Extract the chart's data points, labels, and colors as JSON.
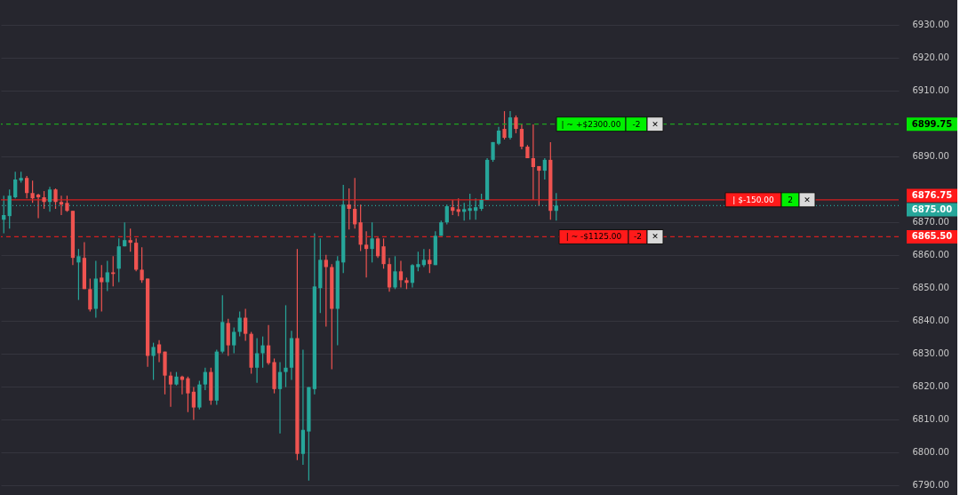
{
  "chart_data": {
    "type": "candlestick",
    "categories": [
      null,
      null,
      null,
      null,
      null,
      null,
      null,
      null,
      null,
      null,
      null,
      null,
      null,
      null,
      null,
      null,
      null,
      null,
      null,
      null,
      null,
      null,
      null,
      null,
      null,
      null,
      null,
      null,
      null,
      null,
      null,
      null,
      null,
      null,
      null,
      null,
      null,
      null,
      null,
      null,
      null,
      null,
      null,
      null,
      null,
      null,
      null,
      null,
      null,
      null,
      null,
      null,
      null,
      null,
      null,
      null,
      null,
      null,
      null,
      null,
      null,
      null,
      null,
      null,
      null,
      null,
      null,
      null,
      null,
      null,
      null,
      null,
      null,
      null,
      null,
      null,
      null,
      null,
      null,
      null,
      null,
      null,
      null,
      null,
      null,
      null,
      null,
      null,
      null,
      null,
      null,
      null,
      null,
      null,
      null,
      null,
      null,
      null,
      null,
      null,
      null,
      null,
      null,
      null,
      null,
      null,
      null,
      null,
      null,
      null,
      null,
      null,
      null,
      null,
      null,
      null,
      null,
      null,
      null,
      null,
      null,
      null,
      null,
      null,
      null,
      null,
      null,
      null,
      null,
      null,
      null,
      null,
      null,
      null,
      null,
      null,
      null,
      null,
      null,
      null,
      null,
      null,
      null,
      null,
      null,
      null,
      null,
      null,
      null,
      null,
      null,
      null,
      null,
      null,
      null,
      null
    ],
    "ohlc": [
      [
        6870.7,
        6878.0,
        6866.6,
        6872.1
      ],
      [
        6871.8,
        6879.9,
        6868.0,
        6878.0
      ],
      [
        6877.5,
        6885.3,
        6877.2,
        6882.9
      ],
      [
        6882.6,
        6885.3,
        6882.0,
        6883.4
      ],
      [
        6883.4,
        6884.0,
        6877.2,
        6878.8
      ],
      [
        6878.8,
        6882.6,
        6875.8,
        6877.2
      ],
      [
        6878.3,
        6878.6,
        6871.2,
        6877.5
      ],
      [
        6877.5,
        6879.4,
        6874.0,
        6876.1
      ],
      [
        6876.1,
        6880.7,
        6873.1,
        6879.9
      ],
      [
        6879.9,
        6880.2,
        6874.0,
        6876.1
      ],
      [
        6876.1,
        6878.0,
        6872.1,
        6875.3
      ],
      [
        6875.8,
        6878.0,
        6873.1,
        6873.4
      ],
      [
        6873.4,
        6873.4,
        6856.9,
        6859.1
      ],
      [
        6857.7,
        6861.8,
        6846.3,
        6859.6
      ],
      [
        6859.1,
        6863.9,
        6849.6,
        6849.6
      ],
      [
        6849.6,
        6852.8,
        6842.8,
        6843.4
      ],
      [
        6843.6,
        6858.2,
        6840.9,
        6852.8
      ],
      [
        6853.1,
        6856.9,
        6842.8,
        6851.7
      ],
      [
        6851.7,
        6858.2,
        6849.0,
        6854.7
      ],
      [
        6854.7,
        6859.6,
        6850.4,
        6854.2
      ],
      [
        6855.8,
        6865.0,
        6851.7,
        6862.6
      ],
      [
        6862.6,
        6869.9,
        6862.6,
        6864.5
      ],
      [
        6864.5,
        6868.0,
        6861.0,
        6863.7
      ],
      [
        6863.7,
        6865.0,
        6855.0,
        6855.5
      ],
      [
        6855.5,
        6862.3,
        6851.5,
        6852.3
      ],
      [
        6852.8,
        6852.8,
        6826.0,
        6829.3
      ],
      [
        6829.3,
        6833.3,
        6822.0,
        6832.0
      ],
      [
        6832.8,
        6834.1,
        6827.4,
        6830.1
      ],
      [
        6830.6,
        6830.6,
        6817.6,
        6823.3
      ],
      [
        6823.3,
        6824.4,
        6813.8,
        6820.6
      ],
      [
        6820.6,
        6824.4,
        6820.3,
        6823.0
      ],
      [
        6823.0,
        6823.3,
        6817.6,
        6822.0
      ],
      [
        6822.5,
        6823.0,
        6812.2,
        6817.9
      ],
      [
        6818.4,
        6819.8,
        6809.8,
        6813.6
      ],
      [
        6813.6,
        6821.7,
        6813.0,
        6820.6
      ],
      [
        6820.6,
        6825.7,
        6818.9,
        6824.4
      ],
      [
        6824.4,
        6825.7,
        6814.4,
        6815.7
      ],
      [
        6815.7,
        6831.2,
        6814.4,
        6830.6
      ],
      [
        6830.6,
        6847.7,
        6830.1,
        6839.6
      ],
      [
        6839.3,
        6840.6,
        6829.3,
        6832.5
      ],
      [
        6832.5,
        6837.9,
        6830.1,
        6836.6
      ],
      [
        6836.6,
        6842.8,
        6835.2,
        6840.9
      ],
      [
        6840.9,
        6843.6,
        6833.9,
        6836.0
      ],
      [
        6836.0,
        6836.6,
        6823.9,
        6825.7
      ],
      [
        6825.7,
        6834.7,
        6821.1,
        6830.1
      ],
      [
        6830.1,
        6835.2,
        6825.7,
        6832.5
      ],
      [
        6832.5,
        6838.7,
        6826.6,
        6827.1
      ],
      [
        6827.4,
        6828.5,
        6817.9,
        6819.2
      ],
      [
        6819.2,
        6827.4,
        6805.7,
        6824.4
      ],
      [
        6824.4,
        6844.7,
        6819.8,
        6825.7
      ],
      [
        6825.7,
        6836.9,
        6822.0,
        6834.7
      ],
      [
        6834.7,
        6861.8,
        6797.6,
        6799.5
      ],
      [
        6799.5,
        6831.2,
        6796.2,
        6806.8
      ],
      [
        6806.3,
        6819.8,
        6791.4,
        6819.8
      ],
      [
        6819.2,
        6866.6,
        6817.6,
        6850.4
      ],
      [
        6849.9,
        6865.0,
        6842.3,
        6858.5
      ],
      [
        6858.5,
        6860.0,
        6838.2,
        6856.3
      ],
      [
        6856.3,
        6857.2,
        6825.2,
        6843.6
      ],
      [
        6843.6,
        6859.6,
        6832.5,
        6858.2
      ],
      [
        6857.7,
        6881.3,
        6854.5,
        6875.3
      ],
      [
        6875.3,
        6880.2,
        6867.7,
        6874.0
      ],
      [
        6874.0,
        6883.4,
        6868.0,
        6869.3
      ],
      [
        6869.9,
        6875.3,
        6861.2,
        6863.1
      ],
      [
        6863.1,
        6867.2,
        6853.1,
        6861.8
      ],
      [
        6861.8,
        6869.9,
        6857.7,
        6865.0
      ],
      [
        6865.0,
        6865.3,
        6859.1,
        6859.6
      ],
      [
        6862.6,
        6865.0,
        6855.8,
        6857.2
      ],
      [
        6857.2,
        6859.1,
        6848.8,
        6850.1
      ],
      [
        6850.1,
        6859.6,
        6849.6,
        6855.0
      ],
      [
        6855.0,
        6858.2,
        6850.1,
        6852.3
      ],
      [
        6852.3,
        6853.1,
        6849.6,
        6851.5
      ],
      [
        6851.5,
        6857.2,
        6850.1,
        6856.9
      ],
      [
        6856.3,
        6861.0,
        6855.0,
        6857.2
      ],
      [
        6856.9,
        6861.8,
        6856.3,
        6858.5
      ],
      [
        6858.5,
        6861.8,
        6854.5,
        6857.2
      ],
      [
        6856.9,
        6867.2,
        6856.9,
        6865.8
      ],
      [
        6865.8,
        6870.4,
        6865.8,
        6869.9
      ],
      [
        6869.9,
        6875.3,
        6869.3,
        6874.8
      ],
      [
        6874.5,
        6876.7,
        6872.1,
        6873.4
      ],
      [
        6873.9,
        6877.2,
        6871.8,
        6873.1
      ],
      [
        6873.1,
        6875.8,
        6870.4,
        6873.9
      ],
      [
        6873.4,
        6878.6,
        6870.7,
        6874.2
      ],
      [
        6873.4,
        6877.2,
        6870.7,
        6874.5
      ],
      [
        6874.0,
        6878.6,
        6873.4,
        6876.7
      ],
      [
        6876.7,
        6889.4,
        6876.7,
        6888.9
      ],
      [
        6888.9,
        6894.3,
        6888.3,
        6894.3
      ],
      [
        6893.8,
        6898.9,
        6893.4,
        6897.8
      ],
      [
        6898.3,
        6903.7,
        6895.1,
        6895.6
      ],
      [
        6895.6,
        6903.7,
        6895.1,
        6901.8
      ],
      [
        6901.8,
        6902.4,
        6897.0,
        6898.3
      ],
      [
        6898.3,
        6899.7,
        6892.1,
        6892.9
      ],
      [
        6892.9,
        6893.4,
        6889.4,
        6889.4
      ],
      [
        6889.4,
        6899.7,
        6876.7,
        6886.7
      ],
      [
        6887.0,
        6887.0,
        6874.8,
        6885.6
      ],
      [
        6885.6,
        6889.4,
        6882.9,
        6888.9
      ],
      [
        6888.9,
        6894.3,
        6870.7,
        6873.4
      ],
      [
        6873.4,
        6878.8,
        6870.4,
        6875.0
      ],
      null,
      null,
      null,
      null,
      null,
      null,
      null,
      null,
      null,
      null,
      null,
      null,
      null,
      null,
      null,
      null,
      null,
      null,
      null,
      null,
      null,
      null,
      null,
      null,
      null,
      null,
      null,
      null,
      null,
      null,
      null,
      null,
      null,
      null,
      null,
      null,
      null,
      null,
      null,
      null,
      null,
      null,
      null,
      null,
      null,
      null,
      null,
      null,
      null,
      null,
      null,
      null,
      null,
      null,
      null,
      null,
      null,
      null,
      null
    ],
    "ylim": [
      6787,
      6937.5
    ],
    "yticks": [
      {
        "value": 6930,
        "label": "6930.00"
      },
      {
        "value": 6920,
        "label": "6920.00"
      },
      {
        "value": 6910,
        "label": "6910.00"
      },
      {
        "value": 6890,
        "label": "6890.00"
      },
      {
        "value": 6870,
        "label": "6870.00"
      },
      {
        "value": 6860,
        "label": "6860.00"
      },
      {
        "value": 6850,
        "label": "6850.00"
      },
      {
        "value": 6840,
        "label": "6840.00"
      },
      {
        "value": 6830,
        "label": "6830.00"
      },
      {
        "value": 6820,
        "label": "6820.00"
      },
      {
        "value": 6810,
        "label": "6810.00"
      },
      {
        "value": 6800,
        "label": "6800.00"
      },
      {
        "value": 6790,
        "label": "6790.00"
      }
    ],
    "ref_lines": [
      {
        "axis": "y",
        "value": 6899.75,
        "label": "6899.75",
        "color": "#1fa31f",
        "line_style": "dashed"
      },
      {
        "axis": "y",
        "value": 6876.75,
        "label": "6876.75",
        "color": "#d41f1f",
        "line_style": "solid"
      },
      {
        "axis": "y",
        "value": 6875.0,
        "label": "6875.00",
        "color": "#26a69a",
        "line_style": "dotted"
      },
      {
        "axis": "y",
        "value": 6865.5,
        "label": "6865.50",
        "color": "#d41f1f",
        "line_style": "dashed"
      }
    ],
    "annotations": [
      {
        "text": "| ~ +$2300.00",
        "y": 6899.75
      },
      {
        "text": "-2",
        "y": 6899.75
      },
      {
        "text": "✕",
        "y": 6899.75
      },
      {
        "text": "| $-150.00",
        "y": 6876.75
      },
      {
        "text": "2",
        "y": 6876.75
      },
      {
        "text": "✕",
        "y": 6876.75
      },
      {
        "text": "| ~ -$1125.00",
        "y": 6865.5
      },
      {
        "text": "-2",
        "y": 6865.5
      },
      {
        "text": "✕",
        "y": 6865.5
      }
    ],
    "grid": "y",
    "tick_labels": "y"
  }
}
